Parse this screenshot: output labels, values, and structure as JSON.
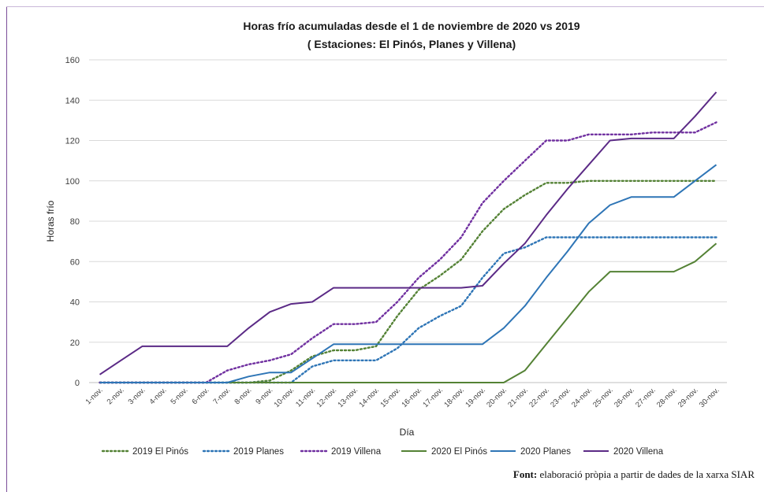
{
  "chart_data": {
    "type": "line",
    "title": "Horas frío acumuladas desde el 1 de noviembre de 2020 vs 2019",
    "subtitle": "( Estaciones: El Pinós, Planes y Villena)",
    "xlabel": "Día",
    "ylabel": "Horas frío",
    "ylim": [
      0,
      160
    ],
    "yticks": [
      "0",
      "20",
      "40",
      "60",
      "80",
      "100",
      "120",
      "140",
      "160"
    ],
    "grid": true,
    "legend_position": "bottom",
    "categories": [
      "1-nov.",
      "2-nov.",
      "3-nov.",
      "4-nov.",
      "5-nov.",
      "6-nov.",
      "7-nov.",
      "8-nov.",
      "9-nov.",
      "10-nov.",
      "11-nov.",
      "12-nov.",
      "13-nov.",
      "14-nov.",
      "15-nov.",
      "16-nov.",
      "17-nov.",
      "18-nov.",
      "19-nov.",
      "20-nov.",
      "21-nov.",
      "22-nov.",
      "23-nov.",
      "24-nov.",
      "25-nov.",
      "26-nov.",
      "27-nov.",
      "28-nov.",
      "29-nov.",
      "30-nov."
    ],
    "series": [
      {
        "name": "2019 El Pinós",
        "color": "#548235",
        "dash": "dotted",
        "values": [
          0,
          0,
          0,
          0,
          0,
          0,
          0,
          0,
          1,
          6,
          13,
          16,
          16,
          18,
          33,
          46,
          53,
          61,
          75,
          86,
          93,
          99,
          99,
          100,
          100,
          100,
          100,
          100,
          100,
          100
        ]
      },
      {
        "name": "2019 Planes",
        "color": "#2e75b6",
        "dash": "dotted",
        "values": [
          0,
          0,
          0,
          0,
          0,
          0,
          0,
          0,
          0,
          0,
          8,
          11,
          11,
          11,
          17,
          27,
          33,
          38,
          52,
          64,
          67,
          72,
          72,
          72,
          72,
          72,
          72,
          72,
          72,
          72
        ]
      },
      {
        "name": "2019 Villena",
        "color": "#7030a0",
        "dash": "dotted",
        "values": [
          0,
          0,
          0,
          0,
          0,
          0,
          6,
          9,
          11,
          14,
          22,
          29,
          29,
          30,
          40,
          52,
          61,
          72,
          89,
          100,
          110,
          120,
          120,
          123,
          123,
          123,
          124,
          124,
          124,
          129
        ]
      },
      {
        "name": "2020 El Pinós",
        "color": "#548235",
        "dash": "solid",
        "values": [
          0,
          0,
          0,
          0,
          0,
          0,
          0,
          0,
          0,
          0,
          0,
          0,
          0,
          0,
          0,
          0,
          0,
          0,
          0,
          0,
          6,
          19,
          32,
          45,
          55,
          55,
          55,
          55,
          60,
          69
        ]
      },
      {
        "name": "2020 Planes",
        "color": "#2e75b6",
        "dash": "solid",
        "values": [
          0,
          0,
          0,
          0,
          0,
          0,
          0,
          3,
          5,
          5,
          12,
          19,
          19,
          19,
          19,
          19,
          19,
          19,
          19,
          27,
          38,
          52,
          65,
          79,
          88,
          92,
          92,
          92,
          100,
          108
        ]
      },
      {
        "name": "2020 Villena",
        "color": "#5b2a86",
        "dash": "solid",
        "values": [
          4,
          11,
          18,
          18,
          18,
          18,
          18,
          27,
          35,
          39,
          40,
          47,
          47,
          47,
          47,
          47,
          47,
          47,
          48,
          59,
          69,
          83,
          96,
          108,
          120,
          121,
          121,
          121,
          132,
          144
        ]
      }
    ]
  },
  "source": {
    "label": "Font:",
    "text": "elaboració pròpia a partir de dades de la xarxa SIAR"
  }
}
